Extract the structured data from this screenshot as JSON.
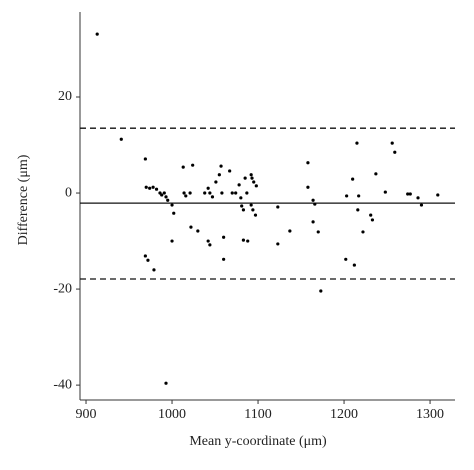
{
  "chart_data": {
    "type": "scatter",
    "x_label": "Mean y-coordinate (μm)",
    "y_label": "Difference (μm)",
    "color": "#000000",
    "xlim": [
      893,
      1329
    ],
    "ylim": [
      -43.1,
      37.7
    ],
    "xticks": [
      900,
      1000,
      1100,
      1200,
      1300
    ],
    "yticks": [
      -40,
      -20,
      0,
      20
    ],
    "reference_lines": [
      {
        "value": -2.1,
        "style": "solid"
      },
      {
        "value": 13.5,
        "style": "dashed"
      },
      {
        "value": -17.9,
        "style": "dashed"
      }
    ],
    "x": [
      913,
      941,
      969,
      970,
      974,
      978,
      982,
      986,
      988,
      991,
      993,
      995,
      1000,
      1002,
      969,
      972,
      979,
      993,
      1000,
      1013,
      1014,
      1016,
      1021,
      1024,
      1022,
      1030,
      1038,
      1042,
      1044,
      1047,
      1042,
      1044,
      1051,
      1055,
      1057,
      1058,
      1060,
      1060,
      1067,
      1070,
      1074,
      1078,
      1080,
      1081,
      1083,
      1085,
      1087,
      1083,
      1088,
      1092,
      1093,
      1095,
      1098,
      1092,
      1094,
      1097,
      1123,
      1123,
      1137,
      1158,
      1158,
      1164,
      1166,
      1164,
      1170,
      1173,
      1203,
      1202,
      1210,
      1212,
      1215,
      1217,
      1216,
      1222,
      1231,
      1233,
      1237,
      1248,
      1256,
      1259,
      1274,
      1277,
      1286,
      1290,
      1309
    ],
    "y": [
      33.1,
      11.2,
      7.1,
      1.2,
      1.0,
      1.2,
      0.8,
      0,
      -0.4,
      0,
      -0.8,
      -1.5,
      -2.5,
      -4.2,
      -13.1,
      -14,
      -16,
      -39.6,
      -10,
      5.4,
      0,
      -0.6,
      0,
      5.8,
      -7.1,
      -7.9,
      0,
      1,
      0,
      -0.8,
      -10,
      -10.8,
      2.3,
      3.8,
      5.6,
      0,
      -9.2,
      -13.8,
      4.6,
      0,
      0,
      1.7,
      -1,
      -2.7,
      -3.5,
      3.1,
      0,
      -9.8,
      -10,
      3.8,
      3.1,
      2.3,
      1.5,
      -2.5,
      -3.5,
      -4.6,
      -2.9,
      -10.6,
      -7.9,
      6.3,
      1.2,
      -1.5,
      -2.3,
      -6,
      -8.1,
      -20.4,
      -0.6,
      -13.8,
      2.9,
      -15,
      10.4,
      -0.6,
      -3.5,
      -8.1,
      -4.6,
      -5.6,
      4,
      0.2,
      10.4,
      8.5,
      -0.2,
      -0.2,
      -1,
      -2.5,
      -0.4
    ]
  }
}
